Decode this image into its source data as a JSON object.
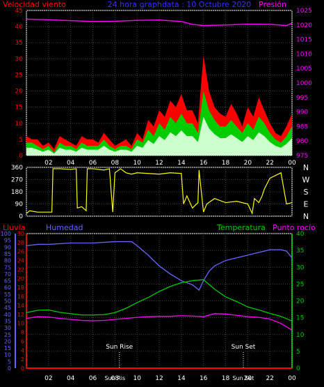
{
  "header": {
    "left_label": "Velocidad viento",
    "center_label": "24 hora graphdata : 10 Octubre 2020",
    "right_label": "Presión"
  },
  "colors": {
    "wind": "#ff0000",
    "gust_mid": "#00cc00",
    "gust_low": "#ccffcc",
    "pressure": "#ff00ff",
    "direction": "#ffff00",
    "humidity": "#6666ff",
    "temperature": "#00cc00",
    "dewpoint": "#ff00ff",
    "rain": "#ff0000",
    "axis": "#ffffff",
    "title": "#3333ff"
  },
  "chart_data": [
    {
      "type": "area",
      "name": "wind-pressure",
      "left_axis": {
        "label": "Velocidad viento",
        "min": 0,
        "max": 45,
        "ticks": [
          0,
          5,
          10,
          15,
          20,
          25,
          30,
          35,
          40,
          45
        ]
      },
      "right_axis": {
        "label": "Presión",
        "min": 975,
        "max": 1025,
        "ticks": [
          975,
          980,
          985,
          990,
          995,
          1000,
          1005,
          1010,
          1015,
          1020,
          1025
        ]
      },
      "x_ticks": [
        "02",
        "04",
        "06",
        "08",
        "10",
        "12",
        "14",
        "16",
        "18",
        "20",
        "22",
        "00"
      ],
      "x_hours": [
        0,
        24
      ],
      "series": [
        {
          "key": "wind_gust",
          "x": [
            0,
            0.5,
            1,
            1.5,
            2,
            2.5,
            3,
            3.5,
            4,
            4.5,
            5,
            5.5,
            6,
            6.5,
            7,
            7.5,
            8,
            8.5,
            9,
            9.5,
            10,
            10.5,
            11,
            11.5,
            12,
            12.5,
            13,
            13.5,
            14,
            14.5,
            15,
            15.5,
            16,
            16.5,
            17,
            17.5,
            18,
            18.5,
            19,
            19.5,
            20,
            20.5,
            21,
            21.5,
            22,
            22.5,
            23,
            23.5,
            24
          ],
          "values": [
            6,
            5,
            5,
            3,
            4,
            2,
            6,
            5,
            4,
            3,
            6,
            5,
            5,
            4,
            7,
            5,
            3,
            4,
            5,
            3,
            7,
            5,
            11,
            9,
            14,
            12,
            17,
            15,
            19,
            14,
            14,
            10,
            31,
            20,
            15,
            13,
            12,
            16,
            13,
            9,
            15,
            12,
            18,
            14,
            10,
            7,
            6,
            9,
            13
          ]
        },
        {
          "key": "wind_avg",
          "x": [
            0,
            0.5,
            1,
            1.5,
            2,
            2.5,
            3,
            3.5,
            4,
            4.5,
            5,
            5.5,
            6,
            6.5,
            7,
            7.5,
            8,
            8.5,
            9,
            9.5,
            10,
            10.5,
            11,
            11.5,
            12,
            12.5,
            13,
            13.5,
            14,
            14.5,
            15,
            15.5,
            16,
            16.5,
            17,
            17.5,
            18,
            18.5,
            19,
            19.5,
            20,
            20.5,
            21,
            21.5,
            22,
            22.5,
            23,
            23.5,
            24
          ],
          "values": [
            4,
            4,
            3,
            2,
            3,
            1,
            4,
            3,
            3,
            2,
            4,
            3,
            3,
            3,
            5,
            3,
            2,
            3,
            3,
            2,
            5,
            4,
            8,
            6,
            10,
            8,
            12,
            10,
            13,
            10,
            10,
            7,
            20,
            14,
            11,
            9,
            9,
            11,
            9,
            7,
            10,
            8,
            12,
            10,
            7,
            5,
            4,
            6,
            9
          ]
        },
        {
          "key": "pressure",
          "x": [
            0,
            2,
            4,
            6,
            8,
            10,
            12,
            14,
            15,
            16,
            18,
            20,
            22,
            23.5,
            24
          ],
          "values": [
            1022,
            1021.8,
            1021.5,
            1021.2,
            1021.3,
            1021.6,
            1021.7,
            1021.2,
            1020.2,
            1019.8,
            1020.0,
            1020.3,
            1020.2,
            1019.8,
            1020.6
          ]
        }
      ]
    },
    {
      "type": "scatter",
      "name": "wind-direction",
      "left_axis": {
        "min": 0,
        "max": 360,
        "ticks": [
          0,
          90,
          180,
          270,
          360
        ]
      },
      "right_labels": [
        "N",
        "W",
        "S",
        "E",
        "N"
      ],
      "x": [
        0,
        0.3,
        1,
        2.3,
        2.4,
        3,
        4,
        4.5,
        4.6,
        5,
        5.4,
        5.5,
        6,
        7,
        7.5,
        7.8,
        8,
        8.5,
        9,
        9.5,
        10,
        11,
        12,
        13,
        14,
        14.2,
        14.5,
        15,
        15.5,
        15.6,
        16,
        16.3,
        17,
        18,
        19,
        20,
        20.4,
        20.6,
        21,
        21.3,
        21.5,
        22,
        22.5,
        23,
        23.5,
        24
      ],
      "values": [
        20,
        40,
        30,
        30,
        350,
        350,
        345,
        350,
        60,
        70,
        40,
        350,
        350,
        340,
        350,
        30,
        320,
        350,
        320,
        310,
        320,
        315,
        310,
        320,
        315,
        90,
        150,
        60,
        100,
        340,
        30,
        90,
        130,
        100,
        110,
        90,
        20,
        130,
        100,
        150,
        200,
        280,
        300,
        320,
        90,
        100
      ]
    },
    {
      "type": "line",
      "name": "humidity-temperature",
      "left_axis_rain": {
        "label": "Lluvia",
        "min": 0,
        "max": 30,
        "ticks": [
          0,
          2,
          4,
          6,
          8,
          10,
          12,
          14,
          16,
          18,
          20,
          22,
          24,
          26,
          28,
          30
        ]
      },
      "left_axis_humidity": {
        "label": "Humedad",
        "min": 0,
        "max": 100,
        "ticks": [
          0,
          5,
          10,
          15,
          20,
          25,
          30,
          35,
          40,
          45,
          50,
          55,
          60,
          65,
          70,
          75,
          80,
          85,
          90,
          95,
          100
        ]
      },
      "right_axis": {
        "label": "Temperatura",
        "min": 0,
        "max": 40,
        "ticks": [
          0,
          5,
          10,
          15,
          20,
          25,
          30,
          35,
          40
        ]
      },
      "right_label_2": "Punto rocío",
      "x_ticks": [
        "02",
        "04",
        "06",
        "08",
        "10",
        "12",
        "14",
        "16",
        "18",
        "20",
        "22",
        "00"
      ],
      "annotations": [
        {
          "label": "Sun Rise",
          "hour": 8.4
        },
        {
          "label": "Sun Set",
          "hour": 19.6
        }
      ],
      "bottom_tick_labels": [
        {
          "label": "Sun Ris",
          "hour": 8.0
        },
        {
          "label": "Sun Set",
          "hour": 19.6
        }
      ],
      "series": [
        {
          "key": "humidity",
          "x": [
            0,
            1,
            2,
            4,
            6,
            8,
            9.5,
            10,
            11,
            12,
            13,
            14,
            15,
            15.6,
            16,
            16.5,
            17,
            18,
            19,
            20,
            21,
            22,
            23,
            23.5,
            24
          ],
          "values": [
            91,
            92,
            92,
            93,
            93,
            94,
            94,
            91,
            84,
            76,
            70,
            65,
            62,
            58,
            65,
            72,
            76,
            80,
            82,
            84,
            86,
            88,
            88,
            87,
            82
          ]
        },
        {
          "key": "temperature",
          "x": [
            0,
            1,
            2,
            3,
            4,
            5,
            6,
            7,
            8,
            9,
            10,
            11,
            12,
            13,
            14,
            15,
            16,
            17,
            18,
            19,
            20,
            21,
            22,
            23,
            24
          ],
          "values": [
            16.5,
            17.2,
            17.3,
            16.6,
            16.2,
            15.8,
            15.8,
            15.9,
            16.5,
            17.8,
            19.5,
            21,
            22.8,
            24.3,
            25.4,
            26,
            26.3,
            23.5,
            21.2,
            19.8,
            18.2,
            17.3,
            16.3,
            15.4,
            14
          ]
        },
        {
          "key": "dewpoint",
          "x": [
            0,
            1,
            2,
            3,
            4,
            5,
            6,
            7,
            8,
            9,
            10,
            11,
            12,
            13,
            14,
            15,
            16,
            17,
            18,
            19,
            20,
            21,
            22,
            23,
            24
          ],
          "values": [
            14.8,
            15.3,
            15.2,
            14.8,
            14.5,
            14.2,
            14.1,
            14.2,
            14.5,
            14.8,
            15.1,
            15.3,
            15.4,
            15.4,
            15.6,
            15.5,
            15.3,
            16.2,
            16.1,
            15.7,
            15.3,
            15.1,
            14.6,
            13.3,
            11.3
          ]
        },
        {
          "key": "rain",
          "x": [
            0,
            24
          ],
          "values": [
            0,
            0
          ]
        }
      ]
    }
  ]
}
